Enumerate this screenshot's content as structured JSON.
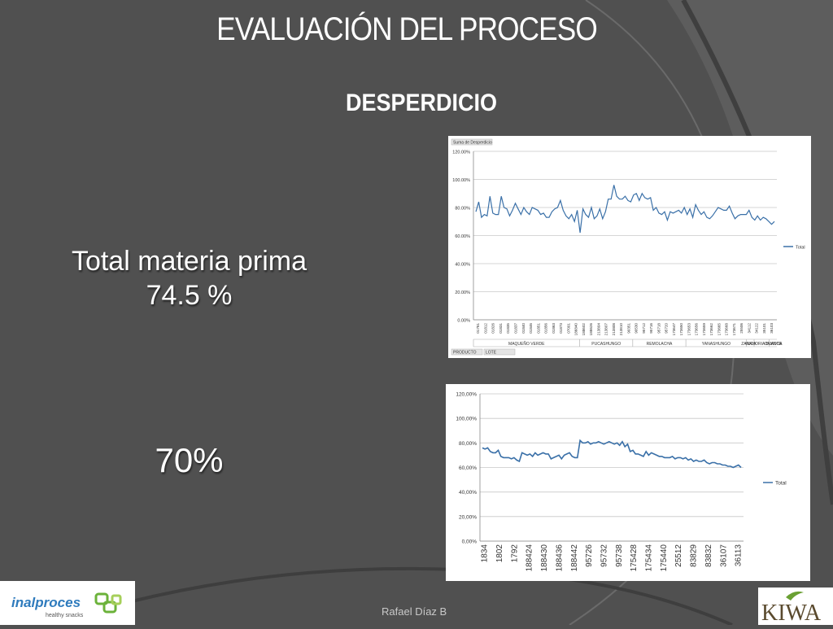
{
  "slide": {
    "title": "EVALUACIÓN DEL PROCESO",
    "subtitle": "DESPERDICIO",
    "stat1_label": "Total materia prima",
    "stat1_value": "74.5 %",
    "stat2_value": "70%",
    "footer": "Rafael Díaz B",
    "colors": {
      "background": "#505050",
      "line": "#3a70a8"
    }
  },
  "logos": {
    "left": "inalproces",
    "left_tagline": "healthy snacks",
    "right": "KIWA"
  },
  "chart_data": [
    {
      "type": "line",
      "field_button": "Suma de Desperdicio",
      "row_buttons": [
        "PRODUCTO",
        "LOTE"
      ],
      "ylim": [
        0,
        120
      ],
      "y_ticks": [
        "0.00%",
        "20.00%",
        "40.00%",
        "60.00%",
        "80.00%",
        "100.00%",
        "120.00%"
      ],
      "legend": "Total",
      "legend_position": "right",
      "grid": true,
      "x_tick_labels": [
        "01781",
        "01812",
        "01826",
        "01831",
        "01835",
        "01837",
        "01840",
        "01846",
        "01851",
        "01856",
        "01863",
        "01873",
        "07001",
        "186840",
        "188602",
        "188626",
        "213804",
        "213807",
        "213808",
        "213810",
        "90351",
        "90530",
        "95712",
        "95716",
        "95718",
        "95720",
        "173647",
        "173650",
        "173653",
        "173656",
        "173659",
        "173662",
        "173665",
        "173668",
        "173671",
        "25506",
        "34112",
        "34122",
        "35101",
        "36103"
      ],
      "product_groups": [
        {
          "label": "MAQUEÑO VERDE",
          "span": 14
        },
        {
          "label": "PUCASHUNGO",
          "span": 7
        },
        {
          "label": "REMOLACHA",
          "span": 7
        },
        {
          "label": "YANASHUNGO",
          "span": 8
        },
        {
          "label": "YUCA",
          "span": 1
        },
        {
          "label": "ZANAHORIA BLANCA",
          "span": 2
        },
        {
          "label": "CAMOTE",
          "span": 1
        }
      ],
      "series": [
        {
          "name": "Total",
          "values": [
            77,
            84,
            73,
            75,
            74,
            88,
            76,
            75,
            75,
            88,
            80,
            79,
            74,
            78,
            83,
            79,
            75,
            80,
            77,
            75,
            80,
            79,
            78,
            75,
            76,
            73,
            73,
            77,
            79,
            80,
            85,
            78,
            74,
            72,
            75,
            70,
            78,
            62,
            79,
            75,
            73,
            80,
            72,
            74,
            79,
            72,
            77,
            86,
            86,
            96,
            88,
            86,
            86,
            88,
            85,
            84,
            89,
            90,
            85,
            90,
            87,
            86,
            87,
            78,
            80,
            76,
            75,
            77,
            71,
            77,
            76,
            77,
            78,
            76,
            80,
            75,
            79,
            73,
            82,
            78,
            75,
            77,
            73,
            72,
            74,
            77,
            80,
            79,
            78,
            78,
            81,
            76,
            72,
            74,
            75,
            75,
            75,
            78,
            73,
            71,
            74,
            71,
            73,
            72,
            70,
            68,
            70
          ]
        }
      ]
    },
    {
      "type": "line",
      "ylim": [
        0,
        120
      ],
      "y_ticks": [
        "0,00%",
        "20,00%",
        "40,00%",
        "60,00%",
        "80,00%",
        "100,00%",
        "120,00%"
      ],
      "legend": "Total",
      "legend_position": "right",
      "grid": true,
      "x_tick_labels": [
        "1834",
        "1802",
        "1792",
        "188424",
        "188430",
        "188436",
        "188442",
        "95726",
        "95732",
        "95738",
        "175428",
        "175434",
        "175440",
        "25512",
        "83829",
        "83832",
        "36107",
        "36113"
      ],
      "series": [
        {
          "name": "Total",
          "values": [
            76,
            75,
            76,
            73,
            72,
            72,
            74,
            69,
            68,
            68,
            68,
            67,
            68,
            66,
            65,
            72,
            71,
            70,
            71,
            69,
            72,
            70,
            71,
            72,
            71,
            71,
            67,
            68,
            69,
            70,
            67,
            70,
            71,
            72,
            69,
            68,
            68,
            82,
            80,
            80,
            81,
            79,
            80,
            80,
            81,
            80,
            79,
            80,
            81,
            80,
            79,
            80,
            78,
            81,
            77,
            79,
            73,
            74,
            71,
            71,
            70,
            69,
            73,
            70,
            72,
            71,
            70,
            69,
            69,
            68,
            68,
            68,
            69,
            67,
            68,
            68,
            67,
            68,
            66,
            67,
            65,
            66,
            65,
            65,
            66,
            64,
            63,
            64,
            64,
            63,
            63,
            62,
            62,
            61,
            61,
            60,
            61,
            62,
            60
          ]
        }
      ]
    }
  ]
}
